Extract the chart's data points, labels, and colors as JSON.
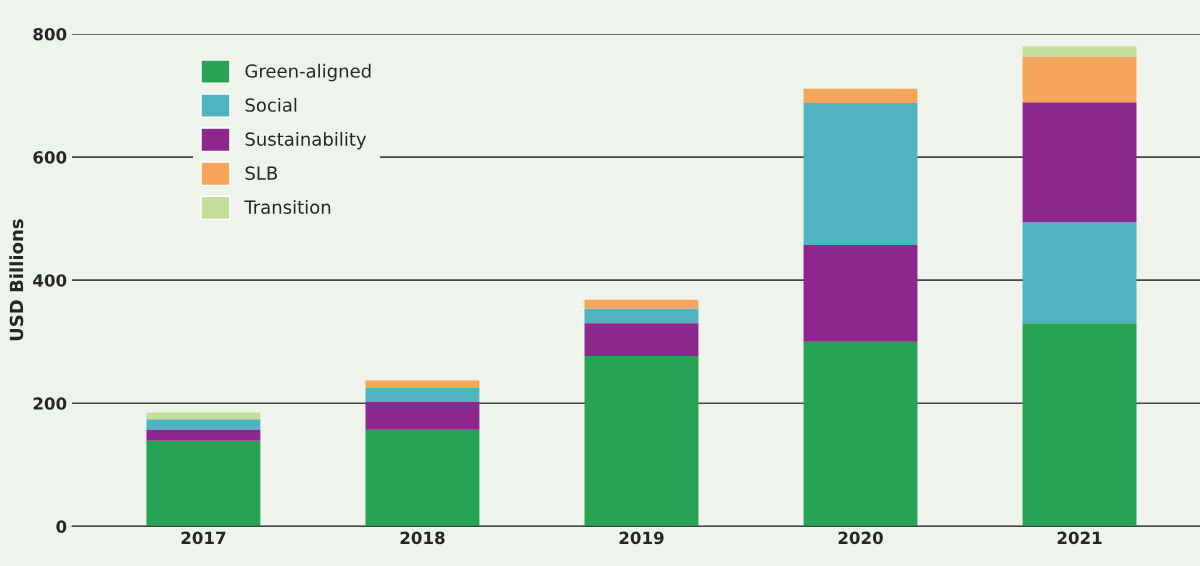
{
  "chart_data": {
    "type": "bar",
    "ylabel": "USD Billions",
    "categories": [
      "2017",
      "2018",
      "2019",
      "2020",
      "2021"
    ],
    "series": [
      {
        "name": "Green-aligned",
        "color": "#27a354",
        "values": [
          139,
          157,
          277,
          300,
          330
        ],
        "base": [
          0,
          0,
          0,
          0,
          0
        ]
      },
      {
        "name": "Social",
        "color": "#4fb3c0",
        "values": [
          17,
          23,
          24,
          231,
          164
        ],
        "base": [
          157,
          202,
          330,
          457,
          330
        ]
      },
      {
        "name": "Sustainability",
        "color": "#8e278d",
        "values": [
          18,
          45,
          53,
          157,
          195
        ],
        "base": [
          139,
          157,
          277,
          300,
          494
        ]
      },
      {
        "name": "SLB",
        "color": "#f7a55a",
        "values": [
          null,
          12,
          14,
          23,
          74
        ],
        "base": [
          null,
          225,
          354,
          688,
          689
        ]
      },
      {
        "name": "Transition",
        "color": "#c5de9a",
        "values": [
          11,
          null,
          null,
          null,
          17
        ],
        "base": [
          174,
          null,
          null,
          null,
          763
        ]
      }
    ],
    "ylim": [
      0,
      800
    ],
    "yticks": [
      0,
      200,
      400,
      600,
      800
    ],
    "grid": "y",
    "legend": "top left"
  }
}
